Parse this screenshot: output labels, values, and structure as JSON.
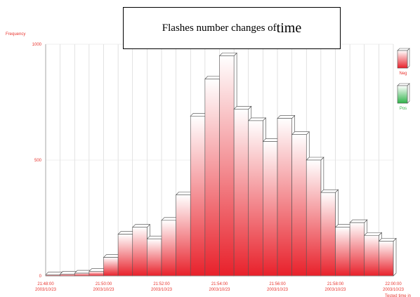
{
  "chart_data": {
    "type": "bar",
    "title_main": "Flashes number changes of ",
    "title_emph": "time",
    "ylabel": "Frequency",
    "xlabel": "Tested time in",
    "ylim": [
      0,
      1000
    ],
    "y_ticks": [
      "0",
      "500",
      "1000"
    ],
    "x_tick_labels": [
      [
        "21:48:00",
        "2003/10/23"
      ],
      [
        "21:50:00",
        "2003/10/23"
      ],
      [
        "21:52:00",
        "2003/10/23"
      ],
      [
        "21:54:00",
        "2003/10/23"
      ],
      [
        "21:56:00",
        "2003/10/23"
      ],
      [
        "21:58:00",
        "2003/10/23"
      ],
      [
        "22:00:00",
        "2003/10/23"
      ]
    ],
    "values": [
      5,
      8,
      12,
      20,
      80,
      180,
      210,
      160,
      240,
      350,
      690,
      850,
      950,
      720,
      670,
      580,
      680,
      610,
      500,
      360,
      210,
      230,
      175,
      150
    ],
    "legend": [
      {
        "label": "Neg",
        "color": "#e8332d"
      },
      {
        "label": "Pos",
        "color": "#37b34a"
      }
    ],
    "bar_color": "#e8332d",
    "grid": true
  }
}
